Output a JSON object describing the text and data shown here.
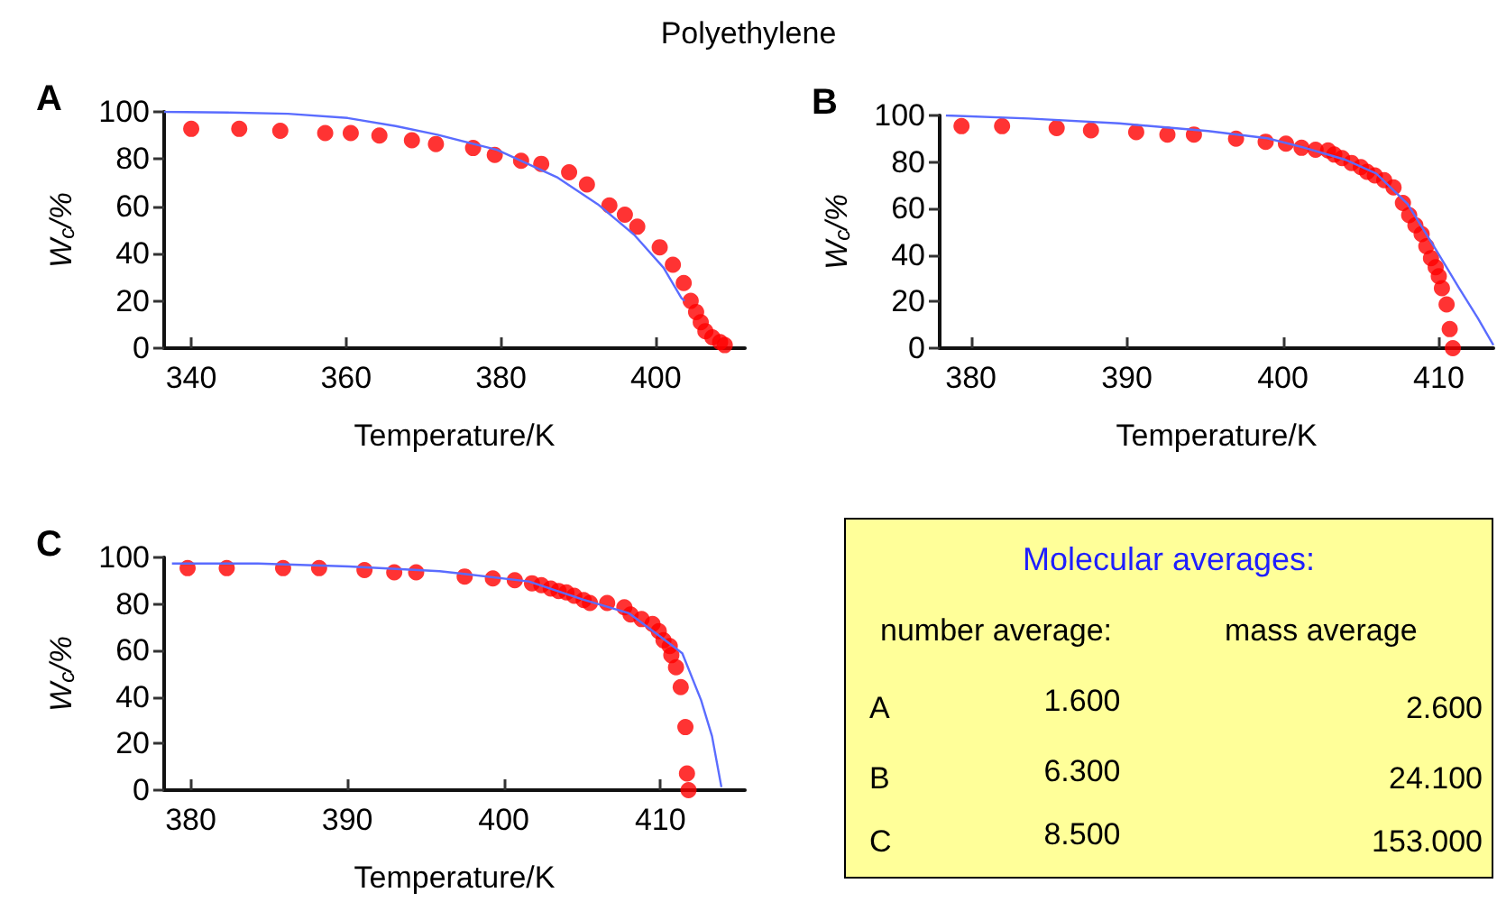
{
  "chart_data": [
    {
      "type": "scatter",
      "title": "A",
      "annotations": [
        "Polyethylene"
      ],
      "xlabel": "Temperature/K",
      "ylabel": "W$_{c}$/%",
      "xlim": [
        336.5,
        411.5
      ],
      "xticks": [
        340,
        360,
        380,
        400
      ],
      "ylim": [
        0,
        100
      ],
      "yticks": [
        0,
        20,
        40,
        60,
        80,
        100
      ],
      "grid": false,
      "series": [
        {
          "type": "scatter",
          "marker": "circle",
          "color": "#ff0000",
          "x": [
            340,
            346.2,
            351.5,
            357.3,
            360.6,
            364.3,
            368.5,
            371.6,
            376.4,
            379.2,
            382.6,
            385.2,
            388.8,
            391.1,
            394,
            396,
            397.6,
            400.5,
            402.2,
            403.6,
            404.5,
            405.2,
            405.8,
            406.4,
            407.3,
            408.3,
            408.9
          ],
          "values": [
            92.8,
            92.8,
            92,
            91,
            91,
            90,
            88,
            86.4,
            84.7,
            81.8,
            79.3,
            78,
            74.4,
            69.3,
            60.4,
            56.5,
            51.4,
            42.7,
            35.3,
            27.6,
            20,
            15.3,
            11,
            7.2,
            4.6,
            2.6,
            1.3
          ]
        },
        {
          "type": "line",
          "color": "#5a6cff",
          "x": [
            336.5,
            344.8,
            352.5,
            360.2,
            366.4,
            371.8,
            379.5,
            387.2,
            392.5,
            397.2,
            401,
            403.3,
            403.7
          ],
          "values": [
            100,
            99.7,
            99.2,
            97.4,
            94,
            90.3,
            83.9,
            72.4,
            60.9,
            48,
            34,
            21.2,
            20
          ]
        }
      ]
    },
    {
      "type": "scatter",
      "title": "B",
      "xlabel": "Temperature/K",
      "ylabel": "W$_{c}$/%",
      "xlim": [
        378,
        413.5
      ],
      "xticks": [
        380,
        390,
        400,
        410
      ],
      "ylim": [
        0,
        100
      ],
      "yticks": [
        0,
        20,
        40,
        60,
        80,
        100
      ],
      "grid": false,
      "series": [
        {
          "type": "scatter",
          "marker": "circle",
          "color": "#ff0000",
          "x": [
            379.4,
            382,
            385.5,
            387.7,
            390.6,
            392.6,
            394.3,
            397,
            398.9,
            400.2,
            401.2,
            402.1,
            402.9,
            403.3,
            403.8,
            404.4,
            405,
            405.4,
            405.9,
            406.5,
            407.1,
            407.7,
            408.1,
            408.5,
            408.9,
            409.2,
            409.5,
            409.8,
            410,
            410.2,
            410.5,
            410.7,
            410.9
          ],
          "values": [
            95.4,
            95.4,
            94.6,
            93.6,
            92.8,
            91.8,
            91.8,
            90,
            88.7,
            87.9,
            86.1,
            85.3,
            85,
            83.2,
            81.7,
            79.6,
            77.8,
            75.8,
            74.2,
            72.2,
            69.1,
            62.4,
            57.2,
            52.8,
            49,
            43.8,
            38.7,
            34.8,
            30.9,
            25.8,
            18.8,
            8.2,
            0
          ]
        },
        {
          "type": "line",
          "color": "#5a6cff",
          "x": [
            378.4,
            383.7,
            389.5,
            395.2,
            399,
            401.3,
            404,
            406,
            408,
            409.8,
            411.3,
            412.5,
            413.5
          ],
          "values": [
            100,
            98.7,
            96.6,
            93.3,
            90.2,
            86.3,
            81,
            75,
            62,
            42.5,
            25.8,
            12.9,
            1.3
          ]
        }
      ]
    },
    {
      "type": "scatter",
      "title": "C",
      "xlabel": "Temperature/K",
      "ylabel": "W$_{c}$/%",
      "xlim": [
        378.3,
        415.4
      ],
      "xticks": [
        380,
        390,
        400,
        410
      ],
      "ylim": [
        0,
        100
      ],
      "yticks": [
        0,
        20,
        40,
        60,
        80,
        100
      ],
      "grid": false,
      "series": [
        {
          "type": "scatter",
          "marker": "circle",
          "color": "#ff0000",
          "x": [
            379.8,
            382.3,
            385.9,
            388.2,
            391.1,
            393,
            394.4,
            397.5,
            399.3,
            400.7,
            401.8,
            402.4,
            403,
            403.5,
            404,
            404.5,
            405.1,
            405.5,
            406.6,
            407.7,
            408.1,
            408.8,
            409.5,
            409.9,
            410.2,
            410.6,
            410.7,
            411,
            411.3,
            411.6,
            411.7,
            411.8
          ],
          "values": [
            95.4,
            95.4,
            95.4,
            95.4,
            94.6,
            93.6,
            93.6,
            91.8,
            91,
            90.2,
            88.9,
            88.1,
            86.6,
            85.6,
            85,
            83.5,
            81.7,
            80.4,
            80.4,
            78.6,
            75.5,
            73.5,
            71.4,
            68.3,
            64.4,
            61.9,
            58,
            52.8,
            44.3,
            27.1,
            7.2,
            0
          ]
        },
        {
          "type": "line",
          "color": "#5a6cff",
          "x": [
            378.8,
            384.3,
            390.1,
            395.9,
            401.6,
            405,
            408,
            410,
            411.4,
            412.6,
            413.3,
            413.9
          ],
          "values": [
            97.4,
            97.4,
            96.1,
            94.1,
            89.7,
            82,
            76,
            66,
            58.8,
            38.7,
            23.2,
            1.3
          ]
        }
      ]
    },
    {
      "type": "other",
      "title": "Molecular averages:",
      "annotations": [
        "number average:",
        "mass average",
        "A",
        "1.600",
        "2.600",
        "B",
        "6.300",
        "24.100",
        "C",
        "8.500",
        "153.000"
      ]
    }
  ]
}
